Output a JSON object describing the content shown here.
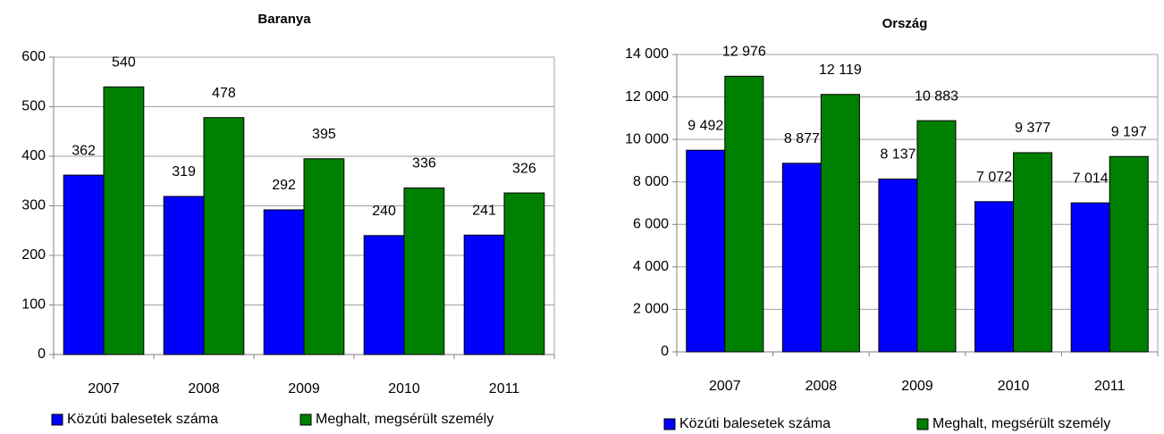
{
  "chart_data": [
    {
      "type": "bar",
      "title": "Baranya",
      "categories": [
        "2007",
        "2008",
        "2009",
        "2010",
        "2011"
      ],
      "series": [
        {
          "name": "Közúti balesetek száma",
          "color": "#0000ff",
          "values": [
            362,
            319,
            292,
            240,
            241
          ]
        },
        {
          "name": "Meghalt, megsérült személy",
          "color": "#008000",
          "values": [
            540,
            478,
            395,
            336,
            326
          ]
        }
      ],
      "ylim": [
        0,
        600
      ],
      "yticks": [
        0,
        100,
        200,
        300,
        400,
        500,
        600
      ],
      "grid": true,
      "legend": "bottom"
    },
    {
      "type": "bar",
      "title": "Ország",
      "categories": [
        "2007",
        "2008",
        "2009",
        "2010",
        "2011"
      ],
      "series": [
        {
          "name": "Közúti balesetek száma",
          "color": "#0000ff",
          "values": [
            9492,
            8877,
            8137,
            7072,
            7014
          ],
          "value_labels": [
            "9 492",
            "8 877",
            "8 137",
            "7 072",
            "7 014"
          ]
        },
        {
          "name": "Meghalt, megsérült személy",
          "color": "#008000",
          "values": [
            12976,
            12119,
            10883,
            9377,
            9197
          ],
          "value_labels": [
            "12 976",
            "12 119",
            "10 883",
            "9 377",
            "9 197"
          ]
        }
      ],
      "ylim": [
        0,
        14000
      ],
      "yticks": [
        0,
        {
          "value": 2000,
          "label": "2 000"
        },
        {
          "value": 4000,
          "label": "4 000"
        },
        {
          "value": 6000,
          "label": "6 000"
        },
        {
          "value": 8000,
          "label": "8 000"
        },
        {
          "value": 10000,
          "label": "10 000"
        },
        {
          "value": 12000,
          "label": "12 000"
        },
        {
          "value": 14000,
          "label": "14 000"
        }
      ],
      "grid": true,
      "legend": "bottom"
    }
  ]
}
